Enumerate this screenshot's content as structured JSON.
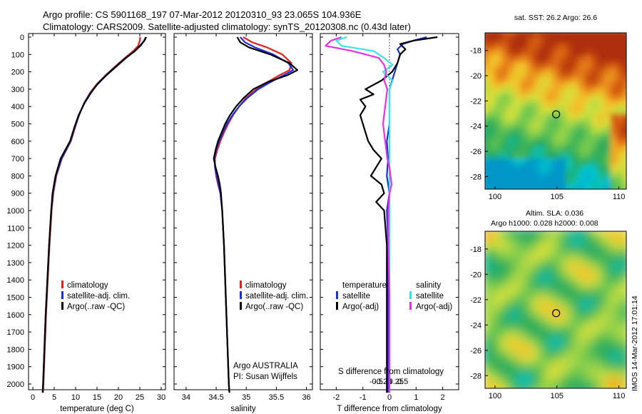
{
  "header": {
    "title_line1": "Argo profile: CS 5901168_197 07-Mar-2012 20120310_93 23.065S 104.936E",
    "title_line2": "Climatology: CARS2009. Satellite-adjusted climatology: synTS_20120308.nc (0.43d later)"
  },
  "colors": {
    "climatology": "#e82020",
    "satellite": "#1a2fe0",
    "argo": "#000000",
    "salinity_satellite": "#38e6e6",
    "salinity_argo": "#e632e6"
  },
  "depth_ticks": [
    0,
    100,
    200,
    300,
    400,
    500,
    600,
    700,
    800,
    900,
    1000,
    1100,
    1200,
    1300,
    1400,
    1500,
    1600,
    1700,
    1800,
    1900,
    2000
  ],
  "chart_data": [
    {
      "type": "line",
      "name": "temperature-profile",
      "xlabel": "temperature (deg C)",
      "xticks": [
        0,
        5,
        10,
        15,
        20,
        25,
        30
      ],
      "xlim": [
        -1,
        31
      ],
      "ylim": [
        2060,
        0
      ],
      "legend": [
        "climatology",
        "satellite-adj. clim.",
        "Argo(..raw -QC)"
      ],
      "legend_position": "lower-center",
      "series": [
        {
          "key": "climatology",
          "depth": [
            0,
            20,
            50,
            80,
            120,
            170,
            220,
            270,
            320,
            380,
            450,
            520,
            600,
            700,
            800,
            900,
            1000,
            1200,
            1400,
            1600,
            1800,
            2000,
            2050
          ],
          "values": [
            25.1,
            25.0,
            24.6,
            23.5,
            21.5,
            19.2,
            17.0,
            15.0,
            13.4,
            12.0,
            10.8,
            9.9,
            8.9,
            6.8,
            5.5,
            4.8,
            4.4,
            3.9,
            3.5,
            3.1,
            2.8,
            2.5,
            2.4
          ]
        },
        {
          "key": "satellite",
          "depth": [
            0,
            20,
            50,
            80,
            120,
            170,
            220,
            270,
            320,
            380,
            450,
            520,
            600,
            700,
            800,
            900,
            1000,
            1200,
            1400,
            1600,
            1800,
            2000,
            2050
          ],
          "values": [
            26.4,
            26.0,
            25.2,
            23.8,
            21.8,
            19.5,
            17.2,
            15.2,
            13.5,
            12.0,
            10.8,
            9.8,
            8.8,
            6.7,
            5.4,
            4.7,
            4.3,
            3.8,
            3.4,
            3.0,
            2.7,
            2.4,
            2.3
          ]
        },
        {
          "key": "argo",
          "depth": [
            0,
            20,
            50,
            80,
            120,
            170,
            220,
            270,
            320,
            380,
            450,
            520,
            600,
            700,
            800,
            900,
            1000,
            1200,
            1400,
            1600,
            1800,
            2000,
            2050
          ],
          "values": [
            26.5,
            26.1,
            25.0,
            23.9,
            21.7,
            19.4,
            17.1,
            15.1,
            13.6,
            12.1,
            10.7,
            9.7,
            8.7,
            6.5,
            5.3,
            4.6,
            4.3,
            3.8,
            3.4,
            3.0,
            2.7,
            2.4,
            2.3
          ]
        }
      ]
    },
    {
      "type": "line",
      "name": "salinity-profile",
      "xlabel": "salinity",
      "xticks": [
        34,
        34.5,
        35,
        35.5,
        36
      ],
      "xlim": [
        33.8,
        36.1
      ],
      "ylim": [
        2060,
        0
      ],
      "legend": [
        "climatology",
        "satellite-adj. clim.",
        "Argo(..raw -QC)"
      ],
      "legend_position": "lower-right",
      "annotation_line1": "Argo AUSTRALIA",
      "annotation_line2": "PI: Susan Wijffels",
      "series": [
        {
          "key": "climatology",
          "depth": [
            0,
            30,
            60,
            100,
            150,
            190,
            220,
            260,
            300,
            350,
            400,
            450,
            500,
            550,
            600,
            650,
            700,
            750,
            800,
            850,
            900,
            1000,
            1200,
            1400,
            1600,
            1800,
            2000,
            2050
          ],
          "values": [
            34.95,
            35.1,
            35.35,
            35.6,
            35.75,
            35.72,
            35.55,
            35.35,
            35.17,
            35.0,
            34.88,
            34.78,
            34.7,
            34.63,
            34.57,
            34.52,
            34.48,
            34.48,
            34.5,
            34.53,
            34.57,
            34.6,
            34.63,
            34.65,
            34.67,
            34.69,
            34.71,
            34.72
          ]
        },
        {
          "key": "satellite",
          "depth": [
            0,
            30,
            60,
            100,
            150,
            190,
            220,
            260,
            300,
            350,
            400,
            450,
            500,
            550,
            600,
            650,
            700,
            750,
            800,
            850,
            900,
            1000,
            1200,
            1400,
            1600,
            1800,
            2000,
            2050
          ],
          "values": [
            34.9,
            34.98,
            35.15,
            35.45,
            35.7,
            35.78,
            35.62,
            35.4,
            35.2,
            35.02,
            34.88,
            34.77,
            34.68,
            34.61,
            34.55,
            34.5,
            34.47,
            34.48,
            34.51,
            34.54,
            34.57,
            34.6,
            34.63,
            34.65,
            34.67,
            34.69,
            34.71,
            34.72
          ]
        },
        {
          "key": "argo",
          "depth": [
            0,
            30,
            60,
            100,
            150,
            190,
            220,
            260,
            300,
            350,
            400,
            450,
            500,
            550,
            600,
            650,
            700,
            750,
            800,
            850,
            900,
            1000,
            1200,
            1400,
            1600,
            1800,
            2000,
            2050
          ],
          "values": [
            34.85,
            34.9,
            35.05,
            35.4,
            35.72,
            35.85,
            35.68,
            35.35,
            35.12,
            34.96,
            34.83,
            34.73,
            34.65,
            34.59,
            34.53,
            34.49,
            34.46,
            34.49,
            34.53,
            34.56,
            34.58,
            34.6,
            34.63,
            34.65,
            34.67,
            34.69,
            34.71,
            34.72
          ]
        }
      ]
    },
    {
      "type": "line",
      "name": "difference-profile",
      "xlabel": "T difference from climatology",
      "xticks": [
        -2,
        -1,
        0,
        1,
        2
      ],
      "xlim": [
        -2.6,
        2.6
      ],
      "s_xlabel": "S difference from climatology",
      "s_xticks": [
        -0.5,
        -0.25,
        0,
        0.25,
        0.5
      ],
      "s_tick_labels": [
        "-0.5",
        "-0.25",
        "0",
        "0.25",
        "0.5"
      ],
      "ylim": [
        2060,
        0
      ],
      "legend_temperature_title": "temperature",
      "legend_salinity_title": "salinity",
      "legend": [
        "satellite",
        "Argo(-adj)",
        "satellite",
        "Argo(-adj)"
      ],
      "series": [
        {
          "key": "t_satellite",
          "depth": [
            0,
            20,
            40,
            70,
            100,
            150,
            200,
            250,
            300,
            400,
            500,
            600,
            700,
            800,
            900,
            1000,
            1200,
            1500,
            1800,
            2000,
            2050
          ],
          "values": [
            1.4,
            0.9,
            0.5,
            0.3,
            0.4,
            0.3,
            0.2,
            0.1,
            0.0,
            0.0,
            0.0,
            -0.1,
            -0.05,
            -0.1,
            0.0,
            -0.1,
            -0.05,
            -0.05,
            -0.05,
            -0.05,
            -0.05
          ]
        },
        {
          "key": "t_argo",
          "depth": [
            0,
            20,
            40,
            70,
            100,
            150,
            200,
            250,
            300,
            330,
            360,
            400,
            450,
            500,
            550,
            600,
            650,
            700,
            750,
            800,
            850,
            900,
            950,
            1000,
            1200,
            1500,
            1800,
            2000,
            2050
          ],
          "values": [
            1.8,
            0.9,
            0.4,
            0.6,
            0.4,
            0.3,
            0.1,
            -0.3,
            -0.9,
            -0.6,
            -1.1,
            -0.9,
            -1.1,
            -1.0,
            -0.9,
            -0.8,
            -0.6,
            -0.3,
            -0.5,
            -0.7,
            -0.3,
            -0.2,
            -0.5,
            -0.2,
            -0.1,
            -0.1,
            -0.1,
            -0.1,
            -0.1
          ]
        },
        {
          "key": "s_satellite",
          "depth": [
            0,
            20,
            50,
            80,
            120,
            160,
            200,
            250,
            300,
            400,
            500,
            600,
            700,
            800,
            900,
            1000,
            1200,
            1500,
            1800,
            2000,
            2050
          ],
          "values": [
            -0.4,
            -0.5,
            -0.45,
            -0.15,
            -0.05,
            0.03,
            -0.06,
            0.03,
            0.0,
            0.0,
            0.0,
            0.0,
            0.0,
            0.0,
            0.0,
            0.0,
            0.0,
            0.0,
            0.0,
            0.0,
            0.0
          ]
        },
        {
          "key": "s_argo",
          "depth": [
            0,
            20,
            50,
            80,
            120,
            160,
            200,
            250,
            300,
            350,
            400,
            450,
            500,
            550,
            600,
            650,
            700,
            750,
            800,
            850,
            900,
            1000,
            1200,
            1500,
            1800,
            2000,
            2050
          ],
          "values": [
            -0.45,
            -0.55,
            -0.6,
            -0.35,
            -0.1,
            -0.05,
            -0.03,
            -0.05,
            -0.02,
            -0.03,
            -0.04,
            -0.05,
            -0.06,
            -0.05,
            -0.04,
            -0.03,
            -0.02,
            0.0,
            0.01,
            0.02,
            0.0,
            -0.01,
            -0.01,
            0.0,
            0.0,
            0.0,
            0.0
          ]
        }
      ]
    },
    {
      "type": "heatmap",
      "name": "sst-map",
      "title": "sat. SST: 26.2  Argo: 26.6",
      "xticks": [
        100,
        105,
        110
      ],
      "yticks": [
        -18,
        -20,
        -22,
        -24,
        -26,
        -28
      ],
      "xlim": [
        99.2,
        110.6
      ],
      "ylim": [
        -29.0,
        -16.6
      ],
      "marker": {
        "lon": 104.936,
        "lat": -23.065
      }
    },
    {
      "type": "heatmap",
      "name": "sla-map",
      "title_line1": "Altim. SLA: 0.036",
      "title_line2": "Argo h1000: 0.028 h2000: 0.008",
      "xticks": [
        100,
        105,
        110
      ],
      "yticks": [
        -18,
        -20,
        -22,
        -24,
        -26,
        -28
      ],
      "xlim": [
        99.2,
        110.6
      ],
      "ylim": [
        -29.0,
        -16.6
      ],
      "marker": {
        "lon": 104.936,
        "lat": -23.065
      }
    }
  ],
  "credit": "IMOS 14-Mar-2012 17:01:14"
}
